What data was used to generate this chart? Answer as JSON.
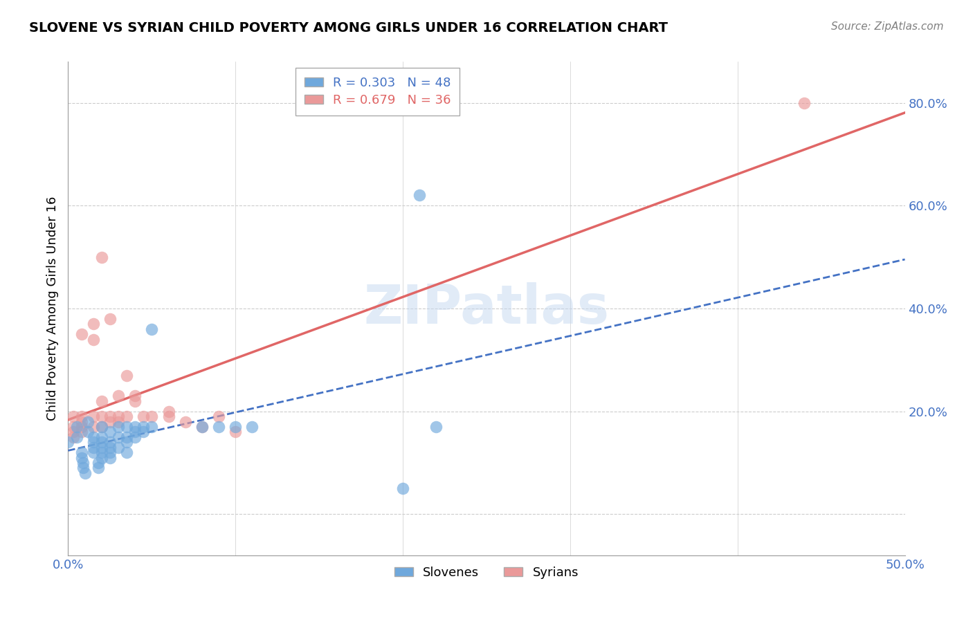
{
  "title": "SLOVENE VS SYRIAN CHILD POVERTY AMONG GIRLS UNDER 16 CORRELATION CHART",
  "source": "Source: ZipAtlas.com",
  "ylabel": "Child Poverty Among Girls Under 16",
  "xlim": [
    0.0,
    0.5
  ],
  "ylim": [
    -0.08,
    0.88
  ],
  "xticks": [
    0.0,
    0.1,
    0.2,
    0.3,
    0.4,
    0.5
  ],
  "xtick_labels": [
    "0.0%",
    "",
    "",
    "",
    "",
    "50.0%"
  ],
  "ytick_positions": [
    0.0,
    0.2,
    0.4,
    0.6,
    0.8
  ],
  "ytick_labels": [
    "",
    "20.0%",
    "40.0%",
    "60.0%",
    "80.0%"
  ],
  "slovene_color": "#6fa8dc",
  "syrian_color": "#ea9999",
  "slovene_R": "0.303",
  "slovene_N": "48",
  "syrian_R": "0.679",
  "syrian_N": "36",
  "watermark": "ZIPatlas",
  "background_color": "#ffffff",
  "grid_color": "#cccccc",
  "slovene_line_color": "#4472c4",
  "syrian_line_color": "#e06666",
  "slovene_scatter": [
    [
      0.0,
      0.14
    ],
    [
      0.005,
      0.17
    ],
    [
      0.005,
      0.15
    ],
    [
      0.008,
      0.12
    ],
    [
      0.008,
      0.11
    ],
    [
      0.009,
      0.1
    ],
    [
      0.009,
      0.09
    ],
    [
      0.01,
      0.08
    ],
    [
      0.012,
      0.18
    ],
    [
      0.012,
      0.16
    ],
    [
      0.015,
      0.15
    ],
    [
      0.015,
      0.14
    ],
    [
      0.015,
      0.13
    ],
    [
      0.015,
      0.12
    ],
    [
      0.018,
      0.1
    ],
    [
      0.018,
      0.09
    ],
    [
      0.02,
      0.17
    ],
    [
      0.02,
      0.15
    ],
    [
      0.02,
      0.14
    ],
    [
      0.02,
      0.13
    ],
    [
      0.02,
      0.12
    ],
    [
      0.02,
      0.11
    ],
    [
      0.025,
      0.16
    ],
    [
      0.025,
      0.14
    ],
    [
      0.025,
      0.13
    ],
    [
      0.025,
      0.12
    ],
    [
      0.025,
      0.11
    ],
    [
      0.03,
      0.17
    ],
    [
      0.03,
      0.15
    ],
    [
      0.03,
      0.13
    ],
    [
      0.035,
      0.17
    ],
    [
      0.035,
      0.15
    ],
    [
      0.035,
      0.14
    ],
    [
      0.035,
      0.12
    ],
    [
      0.04,
      0.17
    ],
    [
      0.04,
      0.16
    ],
    [
      0.04,
      0.15
    ],
    [
      0.045,
      0.17
    ],
    [
      0.045,
      0.16
    ],
    [
      0.05,
      0.17
    ],
    [
      0.05,
      0.36
    ],
    [
      0.08,
      0.17
    ],
    [
      0.09,
      0.17
    ],
    [
      0.1,
      0.17
    ],
    [
      0.11,
      0.17
    ],
    [
      0.21,
      0.62
    ],
    [
      0.22,
      0.17
    ],
    [
      0.2,
      0.05
    ]
  ],
  "syrian_scatter": [
    [
      0.003,
      0.19
    ],
    [
      0.003,
      0.17
    ],
    [
      0.003,
      0.16
    ],
    [
      0.003,
      0.15
    ],
    [
      0.008,
      0.35
    ],
    [
      0.008,
      0.19
    ],
    [
      0.008,
      0.18
    ],
    [
      0.008,
      0.17
    ],
    [
      0.008,
      0.16
    ],
    [
      0.015,
      0.37
    ],
    [
      0.015,
      0.34
    ],
    [
      0.015,
      0.19
    ],
    [
      0.015,
      0.17
    ],
    [
      0.02,
      0.5
    ],
    [
      0.02,
      0.22
    ],
    [
      0.02,
      0.19
    ],
    [
      0.02,
      0.17
    ],
    [
      0.025,
      0.38
    ],
    [
      0.025,
      0.19
    ],
    [
      0.025,
      0.18
    ],
    [
      0.03,
      0.23
    ],
    [
      0.03,
      0.19
    ],
    [
      0.03,
      0.18
    ],
    [
      0.035,
      0.27
    ],
    [
      0.035,
      0.19
    ],
    [
      0.04,
      0.23
    ],
    [
      0.04,
      0.22
    ],
    [
      0.045,
      0.19
    ],
    [
      0.05,
      0.19
    ],
    [
      0.06,
      0.2
    ],
    [
      0.06,
      0.19
    ],
    [
      0.07,
      0.18
    ],
    [
      0.08,
      0.17
    ],
    [
      0.44,
      0.8
    ],
    [
      0.09,
      0.19
    ],
    [
      0.1,
      0.16
    ]
  ]
}
